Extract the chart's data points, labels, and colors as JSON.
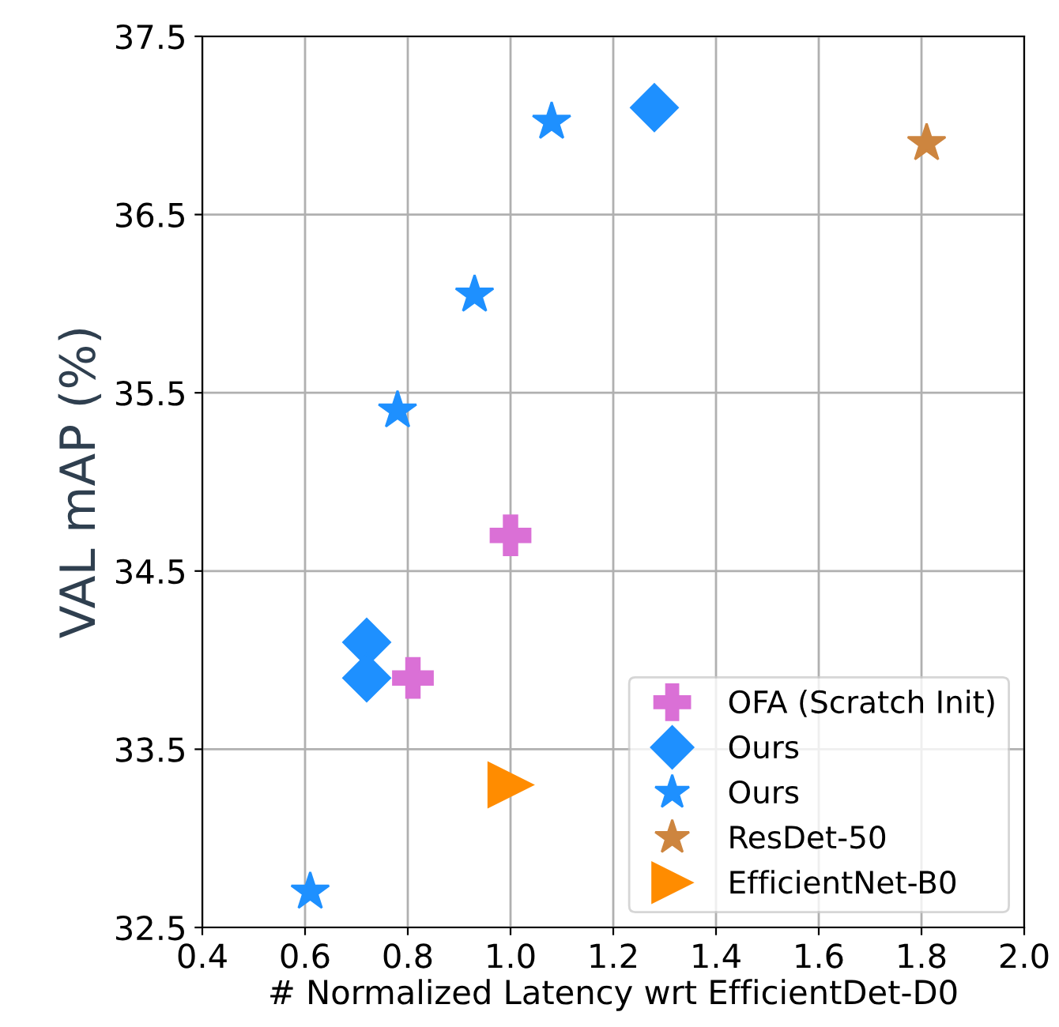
{
  "chart_data": {
    "type": "scatter",
    "xlabel": "# Normalized Latency wrt EfficientDet-D0",
    "ylabel": "VAL mAP (%)",
    "xlim": [
      0.4,
      2.0
    ],
    "xticks": [
      0.4,
      0.6,
      0.8,
      {
        "value": 1,
        "label": "1.0"
      },
      1.2,
      1.4,
      1.6,
      1.8,
      {
        "value": 2,
        "label": "2.0"
      }
    ],
    "ylim": [
      32.5,
      37.5
    ],
    "yticks": [
      32.5,
      33.5,
      34.5,
      35.5,
      36.5,
      37.5
    ],
    "grid": true,
    "legend": "bottom right",
    "series": [
      {
        "name": "OFA (Scratch Init)",
        "color": "#da70d6",
        "marker": "cross",
        "x": [
          1.0,
          0.81
        ],
        "values": [
          34.7,
          33.9
        ]
      },
      {
        "name": "Ours",
        "color": "#1e90ff",
        "marker": "diamond",
        "x": [
          0.72,
          0.72,
          1.28
        ],
        "values": [
          34.1,
          33.9,
          37.1
        ]
      },
      {
        "name": "Ours",
        "color": "#1e90ff",
        "marker": "star",
        "x": [
          0.61,
          0.78,
          0.93,
          1.08
        ],
        "values": [
          32.7,
          35.4,
          36.05,
          37.02
        ]
      },
      {
        "name": "ResDet-50",
        "color": "#cd853f",
        "marker": "star",
        "x": [
          1.81
        ],
        "values": [
          36.9
        ]
      },
      {
        "name": "EfficientNet-B0",
        "color": "#ff8c00",
        "marker": "triangle",
        "x": [
          1.0
        ],
        "values": [
          33.3
        ]
      }
    ]
  }
}
